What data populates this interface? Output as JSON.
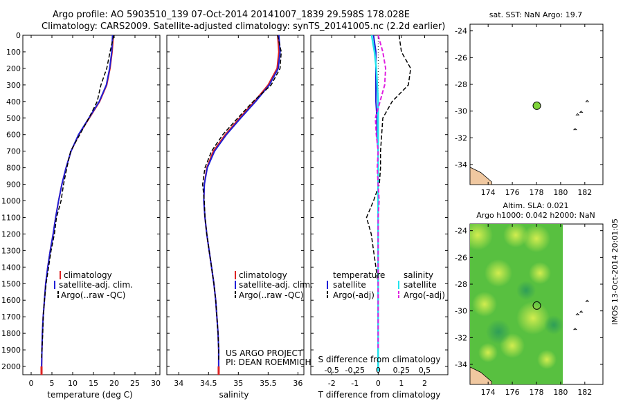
{
  "header": {
    "line1": "Argo profile: AO 5903510_139 07-Oct-2014 20141007_1839 29.598S 178.028E",
    "line2": "Climatology: CARS2009. Satellite-adjusted climatology: synTS_20141005.nc (2.2d earlier)"
  },
  "colors": {
    "climatology": "#dd2222",
    "satellite": "#1f1fd6",
    "argo": "#000000",
    "sal_satellite": "#22e4ee",
    "sal_argo": "#e020e0",
    "land": "#f0c8a0",
    "argo_marker": "#7fd43a"
  },
  "panels": {
    "temperature": {
      "xlabel": "temperature (deg C)",
      "xticks": [
        "0",
        "5",
        "10",
        "15",
        "20",
        "25",
        "30"
      ],
      "legend": [
        "climatology",
        "satellite-adj. clim.",
        "Argo(..raw -QC)"
      ]
    },
    "salinity": {
      "xlabel": "salinity",
      "xticks": [
        "34",
        "34.5",
        "35",
        "35.5",
        "36"
      ],
      "legend": [
        "climatology",
        "satellite-adj. clim.",
        "Argo(..raw -QC)"
      ],
      "credit1": "US ARGO PROJECT",
      "credit2": "PI: DEAN ROEMMICH"
    },
    "difference": {
      "xlabel": "T difference from climatology",
      "top_label": "S difference from climatology",
      "xticks": [
        "-2",
        "-1",
        "0",
        "1",
        "2"
      ],
      "top_ticks": [
        "-0.5",
        "-0.25",
        "0",
        "0.25",
        "0.5"
      ],
      "legend_t_head": "temperature",
      "legend_s_head": "salinity",
      "legend_t": [
        "satellite",
        "Argo(-adj)"
      ],
      "legend_s": [
        "satellite",
        "Argo(-adj)"
      ]
    },
    "depth_ticks": [
      "0",
      "100",
      "200",
      "300",
      "400",
      "500",
      "600",
      "700",
      "800",
      "900",
      "1000",
      "1100",
      "1200",
      "1300",
      "1400",
      "1500",
      "1600",
      "1700",
      "1800",
      "1900",
      "2000"
    ]
  },
  "maps": {
    "sst_title": "sat. SST: NaN Argo: 19.7",
    "sla_title1": "Altim. SLA: 0.021",
    "sla_title2": "Argo h1000: 0.042 h2000: NaN",
    "lon_ticks": [
      "174",
      "176",
      "178",
      "180",
      "182"
    ],
    "lat_ticks": [
      "-24",
      "-26",
      "-28",
      "-30",
      "-32",
      "-34"
    ],
    "side_label": "IMOS 13-Oct-2014 20:01:05"
  },
  "chart_data": [
    {
      "type": "line",
      "panel": "temperature",
      "xlabel": "temperature (deg C)",
      "ylabel": "",
      "xlim": [
        -2,
        31
      ],
      "ylim": [
        2050,
        0
      ],
      "series": [
        {
          "name": "climatology",
          "x": [
            19.8,
            19.5,
            19.0,
            18.2,
            16.5,
            14.0,
            11.5,
            9.6,
            8.4,
            7.4,
            6.6,
            5.9,
            5.3,
            4.6,
            4.0,
            3.5,
            3.2,
            2.9,
            2.7,
            2.6,
            2.5
          ],
          "y": [
            0,
            100,
            200,
            300,
            400,
            500,
            600,
            700,
            800,
            900,
            1000,
            1100,
            1200,
            1300,
            1400,
            1500,
            1600,
            1700,
            1800,
            1900,
            2030
          ]
        },
        {
          "name": "satellite-adj. clim.",
          "x": [
            19.6,
            19.4,
            18.9,
            18.1,
            16.4,
            13.9,
            11.4,
            9.6,
            8.4,
            7.4,
            6.6,
            5.9,
            5.3,
            4.6,
            4.0,
            3.5,
            3.2,
            2.9,
            2.7,
            2.6,
            2.5
          ],
          "y": [
            0,
            100,
            200,
            300,
            400,
            500,
            600,
            700,
            800,
            900,
            1000,
            1100,
            1200,
            1300,
            1400,
            1500,
            1600,
            1700,
            1800,
            1900,
            2030
          ]
        },
        {
          "name": "Argo(..raw -QC)",
          "x": [
            19.9,
            19.0,
            18.2,
            16.8,
            15.9,
            13.9,
            11.7,
            9.5,
            8.6,
            7.8,
            7.2,
            6.1,
            5.6,
            4.8,
            4.2,
            3.6,
            3.2,
            2.9,
            2.8,
            2.6,
            2.5
          ],
          "y": [
            0,
            100,
            200,
            300,
            400,
            500,
            600,
            700,
            800,
            900,
            1000,
            1100,
            1200,
            1300,
            1400,
            1500,
            1600,
            1700,
            1800,
            1900,
            1960
          ]
        }
      ]
    },
    {
      "type": "line",
      "panel": "salinity",
      "xlabel": "salinity",
      "ylabel": "",
      "xlim": [
        33.8,
        36.1
      ],
      "ylim": [
        2050,
        0
      ],
      "series": [
        {
          "name": "climatology",
          "x": [
            35.66,
            35.68,
            35.65,
            35.5,
            35.27,
            35.02,
            34.78,
            34.58,
            34.47,
            34.43,
            34.42,
            34.44,
            34.47,
            34.51,
            34.55,
            34.59,
            34.62,
            34.64,
            34.66,
            34.67,
            34.67
          ],
          "y": [
            0,
            100,
            200,
            300,
            400,
            500,
            600,
            700,
            800,
            900,
            1000,
            1100,
            1200,
            1300,
            1400,
            1500,
            1600,
            1700,
            1800,
            1900,
            2030
          ]
        },
        {
          "name": "satellite-adj. clim.",
          "x": [
            35.68,
            35.7,
            35.67,
            35.52,
            35.29,
            35.04,
            34.8,
            34.6,
            34.48,
            34.43,
            34.42,
            34.44,
            34.47,
            34.51,
            34.55,
            34.59,
            34.62,
            34.64,
            34.66,
            34.67,
            34.67
          ],
          "y": [
            0,
            100,
            200,
            300,
            400,
            500,
            600,
            700,
            800,
            900,
            1000,
            1100,
            1200,
            1300,
            1400,
            1500,
            1600,
            1700,
            1800,
            1900,
            2030
          ]
        },
        {
          "name": "Argo(..raw -QC)",
          "x": [
            35.66,
            35.72,
            35.7,
            35.55,
            35.25,
            34.99,
            34.74,
            34.55,
            34.44,
            34.4,
            34.43,
            34.44,
            34.47,
            34.51,
            34.55,
            34.59,
            34.62,
            34.64,
            34.66,
            34.67,
            34.67
          ],
          "y": [
            0,
            100,
            200,
            300,
            400,
            500,
            600,
            700,
            800,
            900,
            1000,
            1100,
            1200,
            1300,
            1400,
            1500,
            1600,
            1700,
            1800,
            1900,
            1960
          ]
        }
      ]
    },
    {
      "type": "line",
      "panel": "difference",
      "xlabel": "T difference from climatology",
      "ylabel": "",
      "xlim": [
        -2.9,
        3.0
      ],
      "ylim": [
        2050,
        0
      ],
      "series": [
        {
          "name": "temperature satellite",
          "x": [
            -0.2,
            -0.1,
            -0.1,
            -0.1,
            -0.1,
            -0.05,
            -0.05,
            0,
            0,
            0,
            0,
            0,
            0,
            0,
            0,
            0,
            0,
            0,
            0,
            0,
            0
          ],
          "y": [
            0,
            100,
            200,
            300,
            400,
            500,
            600,
            700,
            800,
            900,
            1000,
            1100,
            1200,
            1300,
            1400,
            1500,
            1600,
            1700,
            1800,
            1900,
            2030
          ]
        },
        {
          "name": "temperature Argo(-adj)",
          "x": [
            0.9,
            1.0,
            1.4,
            1.3,
            0.6,
            0.2,
            0.15,
            0.1,
            0.1,
            0.05,
            -0.2,
            -0.5,
            -0.3,
            -0.2,
            -0.1,
            0,
            0,
            0,
            0,
            0
          ],
          "y": [
            0,
            100,
            200,
            300,
            400,
            500,
            600,
            700,
            800,
            900,
            1000,
            1100,
            1200,
            1300,
            1400,
            1500,
            1600,
            1700,
            1800,
            1900
          ]
        },
        {
          "name": "salinity satellite",
          "x": [
            -0.07,
            -0.04,
            -0.02,
            -0.01,
            0,
            0,
            0,
            0,
            0,
            0,
            0,
            0,
            0,
            0,
            0,
            0,
            0,
            0,
            0,
            0,
            0
          ],
          "y": [
            0,
            100,
            200,
            300,
            400,
            500,
            600,
            700,
            800,
            900,
            1000,
            1100,
            1200,
            1300,
            1400,
            1500,
            1600,
            1700,
            1800,
            1900,
            2030
          ]
        },
        {
          "name": "salinity Argo(-adj)",
          "x": [
            0,
            0.05,
            0.08,
            0.07,
            0.02,
            -0.03,
            -0.02,
            0,
            -0.01,
            0,
            0.01,
            0,
            0,
            0,
            0,
            0,
            0,
            0,
            0,
            0
          ],
          "y": [
            0,
            100,
            200,
            300,
            400,
            500,
            600,
            700,
            800,
            900,
            1000,
            1100,
            1200,
            1300,
            1400,
            1500,
            1600,
            1700,
            1800,
            1900
          ]
        }
      ]
    },
    {
      "type": "scatter",
      "panel": "sst map",
      "title": "sat. SST: NaN Argo: 19.7",
      "xlim": [
        172.5,
        183.5
      ],
      "ylim": [
        -35.5,
        -23.5
      ],
      "points": [
        {
          "name": "Argo",
          "x": 178.03,
          "y": -29.6
        }
      ]
    },
    {
      "type": "heatmap",
      "panel": "sla map",
      "title": "Altim. SLA: 0.021",
      "xlim": [
        172.5,
        183.5
      ],
      "ylim": [
        -35.5,
        -23.5
      ],
      "points": [
        {
          "name": "Argo",
          "x": 178.03,
          "y": -29.6
        }
      ]
    }
  ]
}
